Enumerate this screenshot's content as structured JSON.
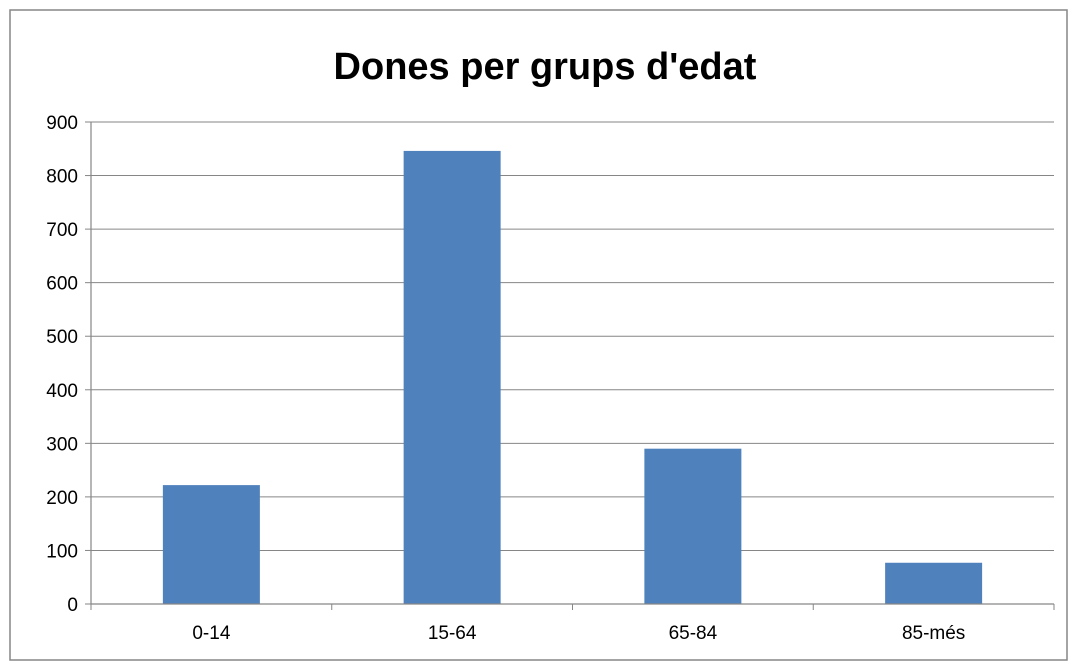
{
  "chart_data": {
    "type": "bar",
    "title": "Dones per grups d'edat",
    "xlabel": "",
    "ylabel": "",
    "categories": [
      "0-14",
      "15-64",
      "65-84",
      "85-més"
    ],
    "values": [
      222,
      846,
      290,
      77
    ],
    "ylim": [
      0,
      900
    ],
    "yticks": [
      0,
      100,
      200,
      300,
      400,
      500,
      600,
      700,
      800,
      900
    ],
    "grid": true,
    "legend": "none",
    "colors": {
      "bar": "#4F81BD",
      "grid": "#868686",
      "axis": "#868686",
      "text": "#000000",
      "frame": "#868686"
    }
  }
}
